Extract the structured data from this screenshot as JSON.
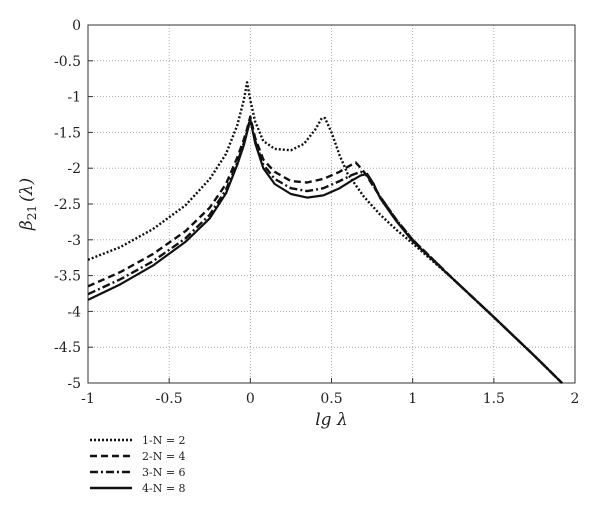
{
  "chart_data": {
    "type": "line",
    "title": "",
    "xlabel": "lg λ",
    "ylabel_main": "β",
    "ylabel_sub": "21",
    "ylabel_arg": "(λ)",
    "xlim": [
      -1,
      2
    ],
    "ylim": [
      -5,
      0
    ],
    "xticks": [
      -1,
      -0.5,
      0,
      0.5,
      1,
      1.5,
      2
    ],
    "xtick_labels": [
      "-1",
      "-0.5",
      "0",
      "0.5",
      "1",
      "1.5",
      "2"
    ],
    "yticks": [
      0,
      -0.5,
      -1,
      -1.5,
      -2,
      -2.5,
      -3,
      -3.5,
      -4,
      -4.5,
      -5
    ],
    "ytick_labels": [
      "0",
      "-0.5",
      "-1",
      "-1.5",
      "-2",
      "-2.5",
      "-3",
      "-3.5",
      "-4",
      "-4.5",
      "-5"
    ],
    "grid": true,
    "legend_position": "below plot, left",
    "series": [
      {
        "name": "1-N = 2",
        "style": "dotted",
        "x": [
          -1,
          -0.8,
          -0.6,
          -0.4,
          -0.25,
          -0.15,
          -0.08,
          -0.04,
          -0.02,
          0,
          0.03,
          0.08,
          0.15,
          0.25,
          0.33,
          0.4,
          0.44,
          0.46,
          0.5,
          0.55,
          0.6,
          0.7,
          0.8,
          0.9,
          1.0,
          1.25,
          1.5,
          1.75,
          1.92
        ],
        "y": [
          -3.28,
          -3.1,
          -2.85,
          -2.52,
          -2.15,
          -1.8,
          -1.4,
          -1.05,
          -0.8,
          -1.05,
          -1.35,
          -1.62,
          -1.73,
          -1.75,
          -1.66,
          -1.46,
          -1.3,
          -1.3,
          -1.5,
          -1.82,
          -2.08,
          -2.4,
          -2.65,
          -2.86,
          -3.05,
          -3.55,
          -4.08,
          -4.62,
          -5.0
        ]
      },
      {
        "name": "2-N = 4",
        "style": "dashed",
        "x": [
          -1,
          -0.8,
          -0.6,
          -0.4,
          -0.25,
          -0.15,
          -0.08,
          -0.04,
          -0.02,
          0,
          0.03,
          0.08,
          0.15,
          0.25,
          0.35,
          0.45,
          0.55,
          0.6,
          0.65,
          0.7,
          0.8,
          0.9,
          1.0,
          1.25,
          1.5,
          1.75,
          1.92
        ],
        "y": [
          -3.65,
          -3.45,
          -3.2,
          -2.88,
          -2.55,
          -2.22,
          -1.85,
          -1.6,
          -1.45,
          -1.28,
          -1.58,
          -1.88,
          -2.05,
          -2.18,
          -2.2,
          -2.15,
          -2.05,
          -1.98,
          -1.92,
          -2.05,
          -2.4,
          -2.72,
          -3.0,
          -3.55,
          -4.08,
          -4.62,
          -5.0
        ]
      },
      {
        "name": "3-N = 6",
        "style": "dashdot",
        "x": [
          -1,
          -0.8,
          -0.6,
          -0.4,
          -0.25,
          -0.15,
          -0.08,
          -0.04,
          -0.02,
          0,
          0.03,
          0.08,
          0.15,
          0.25,
          0.35,
          0.45,
          0.55,
          0.62,
          0.68,
          0.72,
          0.8,
          0.9,
          1.0,
          1.25,
          1.5,
          1.75,
          1.92
        ],
        "y": [
          -3.76,
          -3.55,
          -3.3,
          -2.98,
          -2.65,
          -2.3,
          -1.92,
          -1.65,
          -1.48,
          -1.3,
          -1.62,
          -1.95,
          -2.15,
          -2.28,
          -2.32,
          -2.28,
          -2.18,
          -2.1,
          -2.05,
          -2.1,
          -2.4,
          -2.72,
          -3.0,
          -3.55,
          -4.08,
          -4.62,
          -5.0
        ]
      },
      {
        "name": "4-N = 8",
        "style": "solid",
        "x": [
          -1,
          -0.8,
          -0.6,
          -0.4,
          -0.25,
          -0.15,
          -0.08,
          -0.04,
          -0.02,
          0,
          0.03,
          0.08,
          0.15,
          0.25,
          0.35,
          0.45,
          0.55,
          0.62,
          0.68,
          0.72,
          0.76,
          0.8,
          0.9,
          1.0,
          1.25,
          1.5,
          1.75,
          1.92
        ],
        "y": [
          -3.84,
          -3.62,
          -3.36,
          -3.03,
          -2.7,
          -2.35,
          -1.95,
          -1.68,
          -1.5,
          -1.32,
          -1.65,
          -2.0,
          -2.22,
          -2.36,
          -2.41,
          -2.38,
          -2.28,
          -2.18,
          -2.1,
          -2.08,
          -2.22,
          -2.42,
          -2.74,
          -3.02,
          -3.55,
          -4.08,
          -4.62,
          -5.0
        ]
      }
    ]
  }
}
